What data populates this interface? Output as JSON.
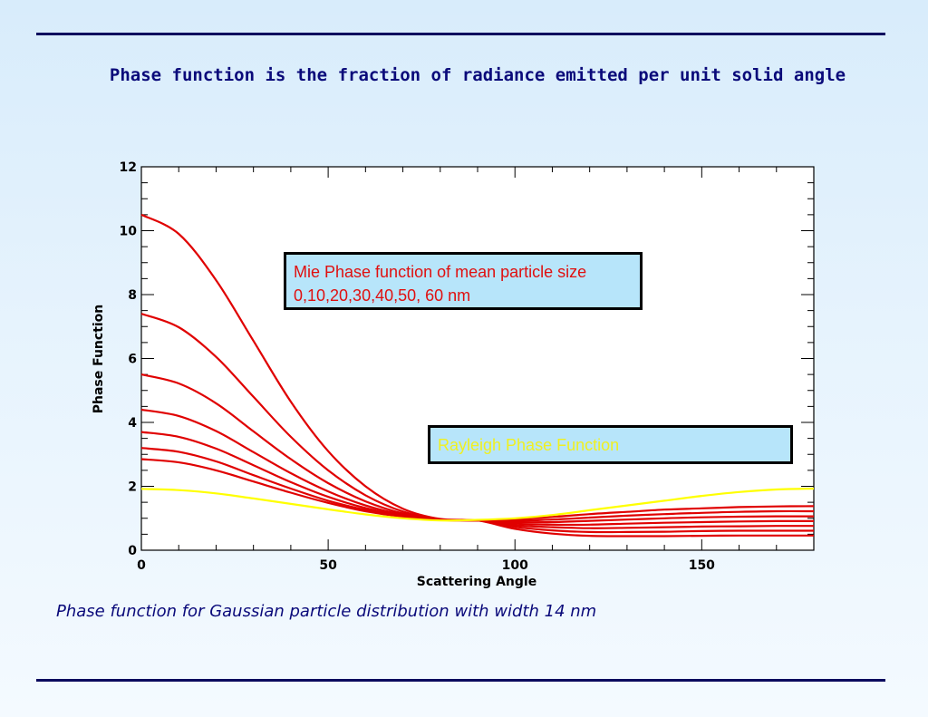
{
  "slide": {
    "title": "Phase function is the fraction of radiance emitted per unit solid angle",
    "caption": "Phase function for Gaussian particle distribution with width 14 nm",
    "rule_color": "#0a0a5e"
  },
  "chart_data": {
    "type": "line",
    "xlabel": "Scattering Angle",
    "ylabel": "Phase Function",
    "xlim": [
      0,
      180
    ],
    "ylim": [
      0,
      12
    ],
    "xticks": [
      0,
      50,
      100,
      150
    ],
    "yticks": [
      0,
      2,
      4,
      6,
      8,
      10,
      12
    ],
    "grid": false,
    "annotations": [
      "Mie Phase function of mean particle size 0,10,20,30,40,50, 60 nm",
      "Rayleigh Phase Function"
    ],
    "x": [
      0,
      10,
      20,
      30,
      40,
      50,
      60,
      70,
      80,
      90,
      100,
      110,
      120,
      130,
      140,
      150,
      160,
      170,
      180
    ],
    "series": [
      {
        "color": "#ffff00",
        "values": [
          1.92,
          1.88,
          1.78,
          1.62,
          1.45,
          1.28,
          1.12,
          1.0,
          0.93,
          0.95,
          1.0,
          1.1,
          1.25,
          1.4,
          1.55,
          1.7,
          1.82,
          1.9,
          1.93
        ]
      },
      {
        "color": "#e00000",
        "values": [
          2.85,
          2.75,
          2.5,
          2.15,
          1.8,
          1.48,
          1.22,
          1.05,
          0.96,
          0.93,
          0.97,
          1.04,
          1.13,
          1.2,
          1.27,
          1.31,
          1.35,
          1.37,
          1.38
        ]
      },
      {
        "color": "#e00000",
        "values": [
          3.2,
          3.08,
          2.78,
          2.35,
          1.93,
          1.55,
          1.26,
          1.06,
          0.95,
          0.93,
          0.92,
          0.96,
          1.02,
          1.08,
          1.13,
          1.17,
          1.2,
          1.22,
          1.22
        ]
      },
      {
        "color": "#e00000",
        "values": [
          3.7,
          3.55,
          3.18,
          2.66,
          2.13,
          1.67,
          1.32,
          1.08,
          0.95,
          0.93,
          0.88,
          0.88,
          0.92,
          0.96,
          1.0,
          1.03,
          1.05,
          1.06,
          1.06
        ]
      },
      {
        "color": "#e00000",
        "values": [
          4.4,
          4.2,
          3.73,
          3.07,
          2.41,
          1.84,
          1.4,
          1.11,
          0.95,
          0.93,
          0.83,
          0.8,
          0.8,
          0.83,
          0.86,
          0.88,
          0.9,
          0.91,
          0.91
        ]
      },
      {
        "color": "#e00000",
        "values": [
          5.5,
          5.22,
          4.6,
          3.72,
          2.85,
          2.1,
          1.53,
          1.15,
          0.95,
          0.93,
          0.78,
          0.72,
          0.69,
          0.7,
          0.72,
          0.74,
          0.75,
          0.76,
          0.76
        ]
      },
      {
        "color": "#e00000",
        "values": [
          7.4,
          6.98,
          6.05,
          4.8,
          3.55,
          2.5,
          1.72,
          1.21,
          0.96,
          0.93,
          0.73,
          0.62,
          0.57,
          0.57,
          0.58,
          0.6,
          0.61,
          0.61,
          0.61
        ]
      },
      {
        "color": "#e00000",
        "values": [
          10.5,
          9.9,
          8.45,
          6.55,
          4.65,
          3.1,
          2.0,
          1.3,
          0.98,
          0.93,
          0.67,
          0.52,
          0.45,
          0.44,
          0.44,
          0.45,
          0.46,
          0.46,
          0.46
        ]
      }
    ]
  }
}
